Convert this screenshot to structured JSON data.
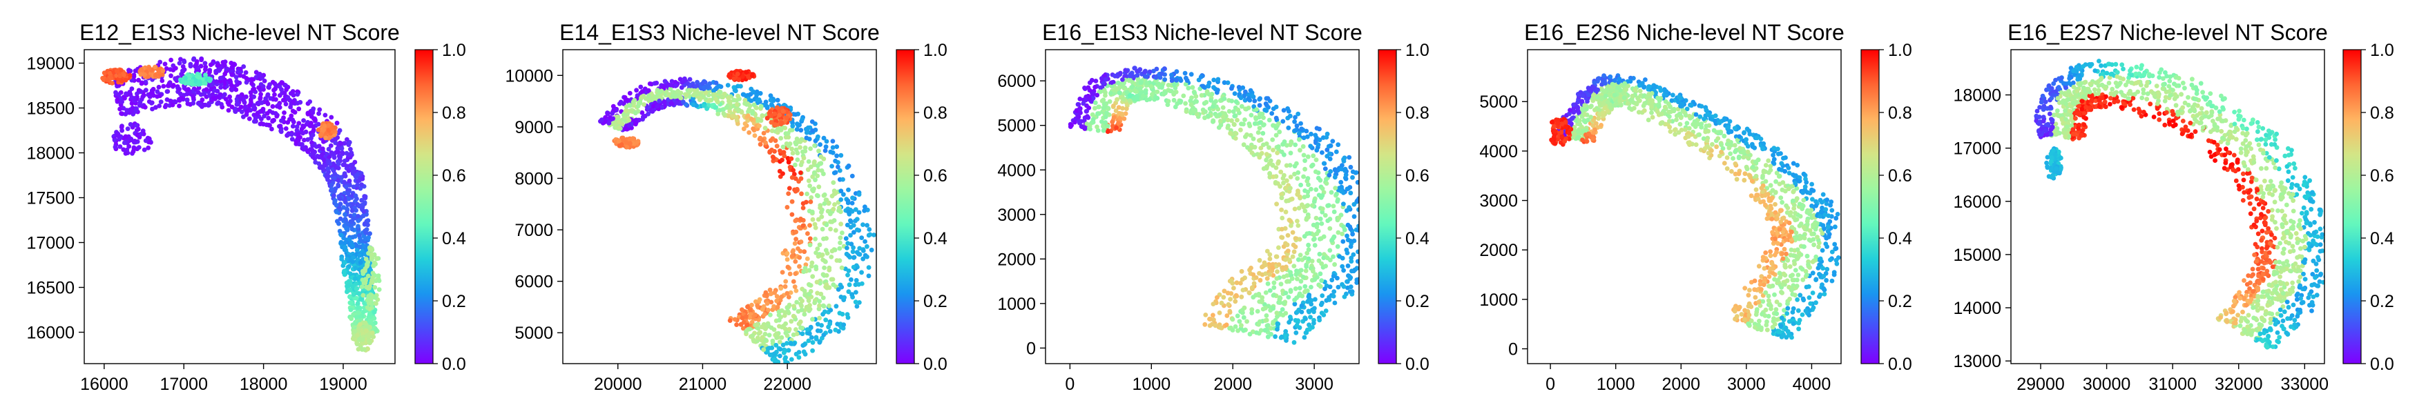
{
  "colormap": [
    "#7f00ff",
    "#4a4afb",
    "#1a95f0",
    "#23d0da",
    "#64f7bd",
    "#9ef6a0",
    "#d3e586",
    "#ffb461",
    "#ff6532",
    "#ff0000"
  ],
  "chart_data": [
    {
      "type": "scatter",
      "title": "E12_E1S3 Niche-level NT Score",
      "xlim": [
        15750,
        19650
      ],
      "ylim": [
        15650,
        19150
      ],
      "xticks": [
        16000,
        17000,
        18000,
        19000
      ],
      "xtick_labels": [
        "16000",
        "17000",
        "18000",
        "19000"
      ],
      "yticks": [
        16000,
        16500,
        17000,
        17500,
        18000,
        18500,
        19000
      ],
      "ytick_labels": [
        "16000",
        "16500",
        "17000",
        "17500",
        "18000",
        "18500",
        "19000"
      ],
      "colorbar": {
        "range": [
          0,
          1
        ],
        "ticks": [
          "0.0",
          "0.2",
          "0.4",
          "0.6",
          "0.8",
          "1.0"
        ]
      },
      "trajectory": [
        [
          16150,
          18650
        ],
        [
          16900,
          18780
        ],
        [
          17500,
          18750
        ],
        [
          18200,
          18500
        ],
        [
          18800,
          18100
        ],
        [
          19050,
          17600
        ],
        [
          19150,
          17000
        ],
        [
          19200,
          16500
        ],
        [
          19280,
          15950
        ]
      ],
      "width": [
        [
          0,
          500
        ],
        [
          0.35,
          560
        ],
        [
          0.6,
          440
        ],
        [
          0.8,
          360
        ],
        [
          1,
          300
        ]
      ],
      "score_out": [
        [
          0,
          0.02
        ],
        [
          0.45,
          0.02
        ],
        [
          0.55,
          0.08
        ],
        [
          0.7,
          0.18
        ],
        [
          0.85,
          0.35
        ],
        [
          1,
          0.62
        ]
      ],
      "score_in": [
        [
          0,
          0.02
        ],
        [
          0.45,
          0.02
        ],
        [
          0.55,
          0.05
        ],
        [
          0.7,
          0.12
        ],
        [
          0.85,
          0.3
        ],
        [
          1,
          0.55
        ]
      ],
      "extras": [
        {
          "x": 16150,
          "y": 18850,
          "rx": 180,
          "ry": 80,
          "v": 0.9
        },
        {
          "x": 16600,
          "y": 18900,
          "rx": 160,
          "ry": 60,
          "v": 0.85
        },
        {
          "x": 17150,
          "y": 18820,
          "rx": 200,
          "ry": 60,
          "v": 0.42
        },
        {
          "x": 18800,
          "y": 18250,
          "rx": 110,
          "ry": 90,
          "v": 0.85
        },
        {
          "x": 16350,
          "y": 18150,
          "rx": 250,
          "ry": 180,
          "v": 0.02
        },
        {
          "x": 19350,
          "y": 16600,
          "rx": 120,
          "ry": 350,
          "v": 0.58
        },
        {
          "x": 19250,
          "y": 15950,
          "rx": 130,
          "ry": 160,
          "v": 0.62
        }
      ]
    },
    {
      "type": "scatter",
      "title": "E14_E1S3 Niche-level NT Score",
      "xlim": [
        19350,
        23050
      ],
      "ylim": [
        4400,
        10500
      ],
      "xticks": [
        20000,
        21000,
        22000
      ],
      "xtick_labels": [
        "20000",
        "21000",
        "22000"
      ],
      "yticks": [
        5000,
        6000,
        7000,
        8000,
        9000,
        10000
      ],
      "ytick_labels": [
        "5000",
        "6000",
        "7000",
        "8000",
        "9000",
        "10000"
      ],
      "colorbar": {
        "range": [
          0,
          1
        ],
        "ticks": [
          "0.0",
          "0.2",
          "0.4",
          "0.6",
          "0.8",
          "1.0"
        ]
      },
      "trajectory": [
        [
          19950,
          9000
        ],
        [
          20350,
          9550
        ],
        [
          20950,
          9650
        ],
        [
          21650,
          9300
        ],
        [
          22250,
          8400
        ],
        [
          22500,
          7100
        ],
        [
          22350,
          5800
        ],
        [
          21950,
          5100
        ],
        [
          21600,
          4850
        ]
      ],
      "width": [
        [
          0,
          400
        ],
        [
          0.3,
          560
        ],
        [
          0.6,
          950
        ],
        [
          0.85,
          1150
        ],
        [
          1,
          1100
        ]
      ],
      "score_out": [
        [
          0,
          0.03
        ],
        [
          0.2,
          0.05
        ],
        [
          0.35,
          0.7
        ],
        [
          0.5,
          0.95
        ],
        [
          0.7,
          0.8
        ],
        [
          1,
          0.85
        ]
      ],
      "score_in": [
        [
          0,
          0.02
        ],
        [
          0.2,
          0.03
        ],
        [
          0.3,
          0.25
        ],
        [
          0.5,
          0.22
        ],
        [
          0.75,
          0.28
        ],
        [
          1,
          0.3
        ]
      ],
      "mid_value": 0.6,
      "extras": [
        {
          "x": 20100,
          "y": 8700,
          "rx": 150,
          "ry": 100,
          "v": 0.85
        },
        {
          "x": 21450,
          "y": 10000,
          "rx": 160,
          "ry": 90,
          "v": 0.95
        },
        {
          "x": 21900,
          "y": 9200,
          "rx": 140,
          "ry": 180,
          "v": 0.9
        }
      ]
    },
    {
      "type": "scatter",
      "title": "E16_E1S3 Niche-level NT Score",
      "xlim": [
        -300,
        3550
      ],
      "ylim": [
        -350,
        6700
      ],
      "xticks": [
        0,
        1000,
        2000,
        3000
      ],
      "xtick_labels": [
        "0",
        "1000",
        "2000",
        "3000"
      ],
      "yticks": [
        0,
        1000,
        2000,
        3000,
        4000,
        5000,
        6000
      ],
      "ytick_labels": [
        "0",
        "1000",
        "2000",
        "3000",
        "4000",
        "5000",
        "6000"
      ],
      "colorbar": {
        "range": [
          0,
          1
        ],
        "ticks": [
          "0.0",
          "0.2",
          "0.4",
          "0.6",
          "0.8",
          "1.0"
        ]
      },
      "trajectory": [
        [
          300,
          4900
        ],
        [
          500,
          5750
        ],
        [
          1100,
          5900
        ],
        [
          2000,
          5400
        ],
        [
          2800,
          4400
        ],
        [
          3150,
          3000
        ],
        [
          3000,
          1800
        ],
        [
          2500,
          1050
        ],
        [
          2200,
          300
        ]
      ],
      "width": [
        [
          0,
          600
        ],
        [
          0.3,
          800
        ],
        [
          0.6,
          1150
        ],
        [
          0.85,
          1400
        ],
        [
          1,
          1300
        ]
      ],
      "score_out": [
        [
          0,
          0.95
        ],
        [
          0.15,
          0.5
        ],
        [
          0.3,
          0.55
        ],
        [
          0.5,
          0.62
        ],
        [
          0.75,
          0.72
        ],
        [
          1,
          0.75
        ]
      ],
      "score_in": [
        [
          0,
          0.02
        ],
        [
          0.15,
          0.05
        ],
        [
          0.3,
          0.22
        ],
        [
          0.5,
          0.22
        ],
        [
          0.75,
          0.25
        ],
        [
          1,
          0.3
        ]
      ],
      "mid_value": 0.55,
      "extras": []
    },
    {
      "type": "scatter",
      "title": "E16_E2S6 Niche-level NT Score",
      "xlim": [
        -350,
        4450
      ],
      "ylim": [
        -300,
        6050
      ],
      "xticks": [
        0,
        1000,
        2000,
        3000,
        4000
      ],
      "xtick_labels": [
        "0",
        "1000",
        "2000",
        "3000",
        "4000"
      ],
      "yticks": [
        0,
        1000,
        2000,
        3000,
        4000,
        5000
      ],
      "ytick_labels": [
        "0",
        "1000",
        "2000",
        "3000",
        "4000",
        "5000"
      ],
      "colorbar": {
        "range": [
          0,
          1
        ],
        "ticks": [
          "0.0",
          "0.2",
          "0.4",
          "0.6",
          "0.8",
          "1.0"
        ]
      },
      "trajectory": [
        [
          350,
          4250
        ],
        [
          700,
          5000
        ],
        [
          1100,
          5250
        ],
        [
          2000,
          4700
        ],
        [
          3000,
          3900
        ],
        [
          3700,
          3000
        ],
        [
          3950,
          2200
        ],
        [
          3600,
          1200
        ],
        [
          3200,
          400
        ]
      ],
      "width": [
        [
          0,
          600
        ],
        [
          0.3,
          650
        ],
        [
          0.6,
          950
        ],
        [
          0.85,
          1200
        ],
        [
          1,
          1000
        ]
      ],
      "score_out": [
        [
          0,
          0.9
        ],
        [
          0.15,
          0.55
        ],
        [
          0.3,
          0.6
        ],
        [
          0.5,
          0.72
        ],
        [
          0.75,
          0.8
        ],
        [
          1,
          0.75
        ]
      ],
      "score_in": [
        [
          0,
          0.02
        ],
        [
          0.15,
          0.1
        ],
        [
          0.3,
          0.25
        ],
        [
          0.5,
          0.25
        ],
        [
          0.75,
          0.25
        ],
        [
          1,
          0.3
        ]
      ],
      "mid_value": 0.58,
      "extras": [
        {
          "x": 150,
          "y": 4400,
          "rx": 170,
          "ry": 300,
          "v": 0.95
        }
      ]
    },
    {
      "type": "scatter",
      "title": "E16_E2S7 Niche-level NT Score",
      "xlim": [
        28550,
        33300
      ],
      "ylim": [
        12950,
        18850
      ],
      "xticks": [
        29000,
        30000,
        31000,
        32000,
        33000
      ],
      "xtick_labels": [
        "29000",
        "30000",
        "31000",
        "32000",
        "33000"
      ],
      "yticks": [
        13000,
        14000,
        15000,
        16000,
        17000,
        18000
      ],
      "ytick_labels": [
        "13000",
        "14000",
        "15000",
        "16000",
        "17000",
        "18000"
      ],
      "colorbar": {
        "range": [
          0,
          1
        ],
        "ticks": [
          "0.0",
          "0.2",
          "0.4",
          "0.6",
          "0.8",
          "1.0"
        ]
      },
      "trajectory": [
        [
          29300,
          17200
        ],
        [
          29400,
          17900
        ],
        [
          30000,
          18200
        ],
        [
          31200,
          17800
        ],
        [
          32200,
          16900
        ],
        [
          32700,
          15800
        ],
        [
          32800,
          14800
        ],
        [
          32500,
          14100
        ],
        [
          32100,
          13500
        ]
      ],
      "width": [
        [
          0,
          700
        ],
        [
          0.3,
          900
        ],
        [
          0.6,
          1100
        ],
        [
          0.85,
          1150
        ],
        [
          1,
          1000
        ]
      ],
      "score_out": [
        [
          0,
          0.95
        ],
        [
          0.15,
          0.95
        ],
        [
          0.35,
          0.97
        ],
        [
          0.6,
          0.95
        ],
        [
          0.85,
          0.85
        ],
        [
          1,
          0.7
        ]
      ],
      "score_in": [
        [
          0,
          0.05
        ],
        [
          0.15,
          0.15
        ],
        [
          0.35,
          0.55
        ],
        [
          0.6,
          0.3
        ],
        [
          0.85,
          0.25
        ],
        [
          1,
          0.35
        ]
      ],
      "mid_value": 0.6,
      "extras": [
        {
          "x": 29200,
          "y": 16700,
          "rx": 120,
          "ry": 300,
          "v": 0.3
        }
      ]
    }
  ]
}
